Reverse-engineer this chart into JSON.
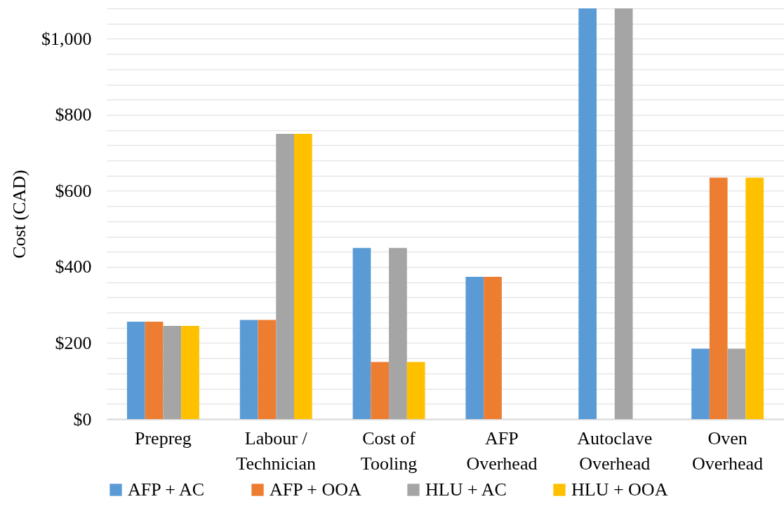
{
  "chart_data": {
    "type": "bar",
    "ylabel": "Cost (CAD)",
    "categories": [
      "Prepreg",
      "Labour /\nTechnician",
      "Cost of\nTooling",
      "AFP\nOverhead",
      "Autoclave\nOverhead",
      "Oven\nOverhead"
    ],
    "series": [
      {
        "name": "AFP + AC",
        "color": "#5b9bd5",
        "values": [
          256,
          261,
          450,
          374,
          1080,
          185
        ]
      },
      {
        "name": "AFP + OOA",
        "color": "#ed7d31",
        "values": [
          256,
          261,
          150,
          374,
          null,
          635
        ]
      },
      {
        "name": "HLU + AC",
        "color": "#a5a5a5",
        "values": [
          245,
          750,
          450,
          null,
          1080,
          185
        ]
      },
      {
        "name": "HLU + OOA",
        "color": "#ffc000",
        "values": [
          245,
          750,
          150,
          null,
          null,
          635
        ]
      }
    ],
    "ylim": [
      0,
      1080
    ],
    "yticks": [
      {
        "value": 0,
        "label": "$0"
      },
      {
        "value": 40,
        "label": null
      },
      {
        "value": 80,
        "label": null
      },
      {
        "value": 120,
        "label": null
      },
      {
        "value": 160,
        "label": null
      },
      {
        "value": 200,
        "label": "$200"
      },
      {
        "value": 240,
        "label": null
      },
      {
        "value": 280,
        "label": null
      },
      {
        "value": 320,
        "label": null
      },
      {
        "value": 360,
        "label": null
      },
      {
        "value": 400,
        "label": "$400"
      },
      {
        "value": 440,
        "label": null
      },
      {
        "value": 480,
        "label": null
      },
      {
        "value": 520,
        "label": null
      },
      {
        "value": 560,
        "label": null
      },
      {
        "value": 600,
        "label": "$600"
      },
      {
        "value": 640,
        "label": null
      },
      {
        "value": 680,
        "label": null
      },
      {
        "value": 720,
        "label": null
      },
      {
        "value": 760,
        "label": null
      },
      {
        "value": 800,
        "label": "$800"
      },
      {
        "value": 840,
        "label": null
      },
      {
        "value": 880,
        "label": null
      },
      {
        "value": 920,
        "label": null
      },
      {
        "value": 960,
        "label": null
      },
      {
        "value": 1000,
        "label": "$1,000"
      },
      {
        "value": 1040,
        "label": null
      },
      {
        "value": 1080,
        "label": null
      }
    ],
    "grid": true,
    "legend": "bottom"
  }
}
